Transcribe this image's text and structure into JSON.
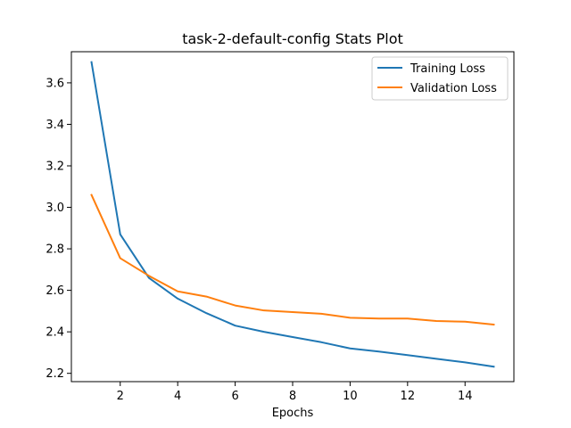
{
  "chart_data": {
    "type": "line",
    "title": "task-2-default-config Stats Plot",
    "xlabel": "Epochs",
    "ylabel": "",
    "xlim": [
      0.3,
      15.7
    ],
    "ylim": [
      2.16,
      3.75
    ],
    "xticks": [
      2,
      4,
      6,
      8,
      10,
      12,
      14
    ],
    "yticks": [
      2.2,
      2.4,
      2.6,
      2.8,
      3.0,
      3.2,
      3.4,
      3.6
    ],
    "x": [
      1,
      2,
      3,
      4,
      5,
      6,
      7,
      8,
      9,
      10,
      11,
      12,
      13,
      14,
      15
    ],
    "legend_position": "top-right",
    "grid": false,
    "series": [
      {
        "name": "Training Loss",
        "color": "#1f77b4",
        "values": [
          3.7,
          2.87,
          2.66,
          2.56,
          2.49,
          2.43,
          2.4,
          2.375,
          2.35,
          2.32,
          2.305,
          2.288,
          2.27,
          2.253,
          2.232
        ]
      },
      {
        "name": "Validation Loss",
        "color": "#ff7f0e",
        "values": [
          3.06,
          2.755,
          2.67,
          2.595,
          2.57,
          2.527,
          2.503,
          2.495,
          2.487,
          2.468,
          2.464,
          2.464,
          2.452,
          2.449,
          2.435
        ]
      }
    ]
  }
}
